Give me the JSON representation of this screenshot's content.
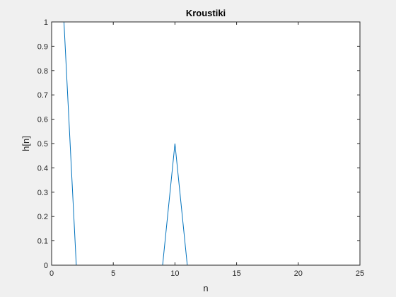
{
  "chart_data": {
    "type": "line",
    "title": "Kroustiki",
    "xlabel": "n",
    "ylabel": "h[n]",
    "xlim": [
      0,
      25
    ],
    "ylim": [
      0,
      1
    ],
    "xticks": [
      0,
      5,
      10,
      15,
      20,
      25
    ],
    "yticks": [
      0,
      0.1,
      0.2,
      0.3,
      0.4,
      0.5,
      0.6,
      0.7,
      0.8,
      0.9,
      1
    ],
    "xtick_labels": [
      "0",
      "5",
      "10",
      "15",
      "20",
      "25"
    ],
    "ytick_labels": [
      "0",
      "0.1",
      "0.2",
      "0.3",
      "0.4",
      "0.5",
      "0.6",
      "0.7",
      "0.8",
      "0.9",
      "1"
    ],
    "grid": false,
    "series": [
      {
        "color": "#0072bd",
        "x": [
          1,
          2,
          3,
          4,
          5,
          6,
          7,
          8,
          9,
          10,
          11,
          12,
          13,
          14,
          15,
          16,
          17,
          18,
          19,
          20,
          21
        ],
        "values": [
          1,
          0,
          0,
          0,
          0,
          0,
          0,
          0,
          0,
          0.5,
          0,
          0,
          0,
          0,
          0,
          0,
          0,
          0,
          0,
          0,
          0
        ]
      }
    ]
  }
}
